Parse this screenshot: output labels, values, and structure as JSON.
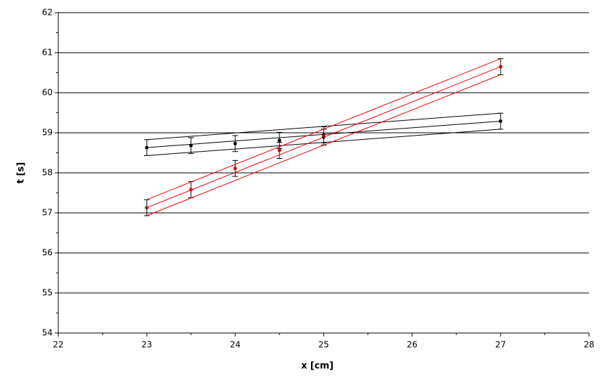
{
  "chart_data": {
    "type": "scatter",
    "x_label": "x [cm]",
    "y_label": "t [s]",
    "xlim": [
      22,
      28
    ],
    "ylim": [
      54,
      62
    ],
    "xticks": [
      22,
      23,
      24,
      25,
      26,
      27,
      28
    ],
    "yticks": [
      54,
      55,
      56,
      57,
      58,
      59,
      60,
      61,
      62
    ],
    "x_minor_ticks": [
      22.5,
      23.5,
      24.5,
      25.5,
      26.5,
      27.5
    ],
    "y_minor_ticks": [
      54.5,
      55.5,
      56.5,
      57.5,
      58.5,
      59.5,
      60.5,
      61.5
    ],
    "grid": true,
    "series": [
      {
        "mode": "markers",
        "color": "#000000",
        "x": [
          23,
          23.5,
          24,
          24.5,
          25,
          27
        ],
        "values": [
          58.63,
          58.68,
          58.73,
          58.81,
          58.89,
          59.29
        ],
        "errors": [
          0.2,
          0.2,
          0.2,
          0.2,
          0.2,
          0.2
        ]
      },
      {
        "mode": "markers",
        "color": "#cc0000",
        "x": [
          23,
          23.5,
          24,
          24.5,
          25,
          27
        ],
        "values": [
          57.13,
          57.58,
          58.11,
          58.56,
          58.95,
          60.65
        ],
        "errors": [
          0.2,
          0.2,
          0.2,
          0.2,
          0.2,
          0.2
        ]
      },
      {
        "mode": "line",
        "color": "#000000",
        "x": [
          23,
          27
        ],
        "values": [
          58.63,
          59.29
        ]
      },
      {
        "mode": "line",
        "color": "#000000",
        "x": [
          23,
          27
        ],
        "values": [
          58.83,
          59.49
        ]
      },
      {
        "mode": "line",
        "color": "#000000",
        "x": [
          23,
          27
        ],
        "values": [
          58.43,
          59.09
        ]
      },
      {
        "mode": "line",
        "color": "#ee0000",
        "x": [
          23,
          27
        ],
        "values": [
          57.13,
          60.65
        ]
      },
      {
        "mode": "line",
        "color": "#ee0000",
        "x": [
          23,
          27
        ],
        "values": [
          57.33,
          60.85
        ]
      },
      {
        "mode": "line",
        "color": "#ee0000",
        "x": [
          23,
          27
        ],
        "values": [
          56.93,
          60.45
        ]
      }
    ]
  }
}
